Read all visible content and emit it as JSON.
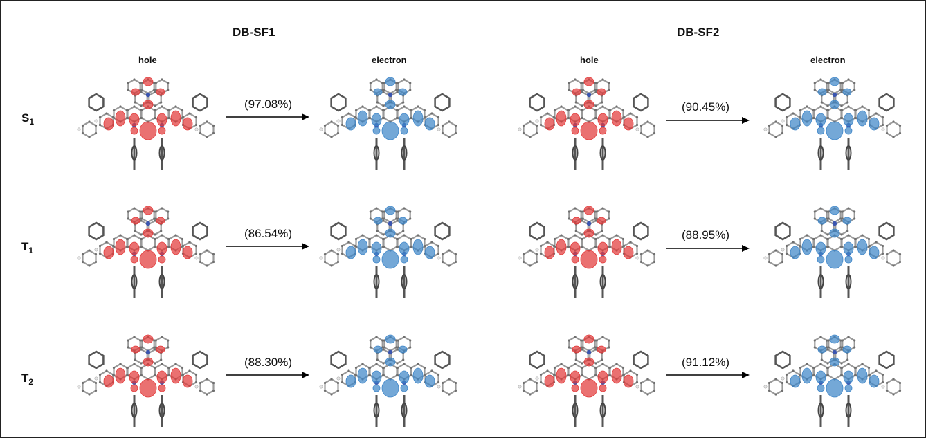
{
  "headers": {
    "dbsf1": "DB-SF1",
    "dbsf2": "DB-SF2"
  },
  "subheaders": [
    "hole",
    "electron",
    "hole",
    "electron"
  ],
  "rows": [
    {
      "label": "S",
      "subscript": "1",
      "dbsf1_pct": "(97.08%)",
      "dbsf2_pct": "(90.45%)"
    },
    {
      "label": "T",
      "subscript": "1",
      "dbsf1_pct": "(86.54%)",
      "dbsf2_pct": "(88.95%)"
    },
    {
      "label": "T",
      "subscript": "2",
      "dbsf1_pct": "(88.30%)",
      "dbsf2_pct": "(91.12%)"
    }
  ],
  "colors": {
    "hole": "#e23a3a",
    "electron": "#3f86c8",
    "bond": "#9a9a9a",
    "nitrogen": "#3a55b0",
    "arrow": "#000000"
  }
}
